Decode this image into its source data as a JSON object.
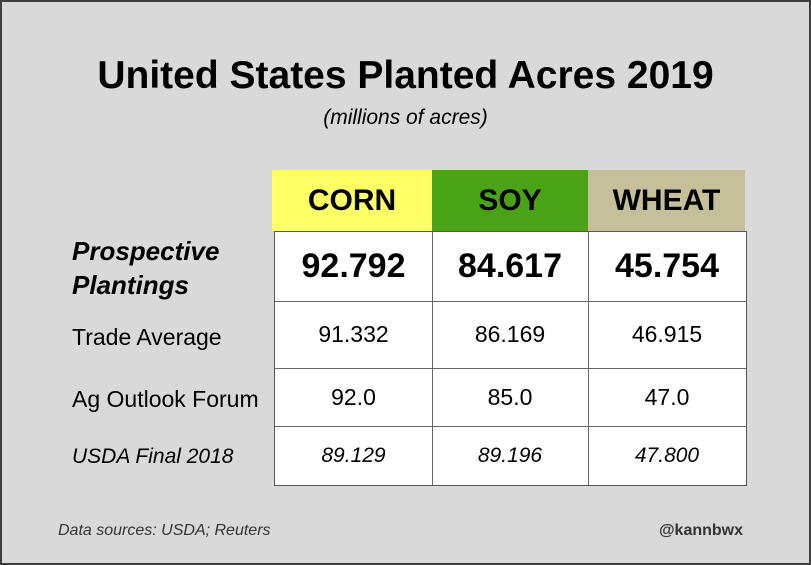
{
  "colors": {
    "background": "#d9d9d9",
    "corn_header": "#ffff66",
    "soy_header": "#4aa317",
    "wheat_header": "#c6c09a"
  },
  "title": "United States Planted Acres 2019",
  "subtitle": "(millions of acres)",
  "columns": [
    "CORN",
    "SOY",
    "WHEAT"
  ],
  "rows": [
    {
      "label_line1": "Prospective",
      "label_line2": "Plantings",
      "values": [
        "92.792",
        "84.617",
        "45.754"
      ]
    },
    {
      "label": "Trade Average",
      "values": [
        "91.332",
        "86.169",
        "46.915"
      ]
    },
    {
      "label": "Ag Outlook Forum",
      "values": [
        "92.0",
        "85.0",
        "47.0"
      ]
    },
    {
      "label": "USDA Final 2018",
      "values": [
        "89.129",
        "89.196",
        "47.800"
      ]
    }
  ],
  "footer": {
    "sources": "Data sources: USDA; Reuters",
    "handle": "@kannbwx"
  },
  "chart_data": {
    "type": "table",
    "title": "United States Planted Acres 2019",
    "subtitle": "(millions of acres)",
    "columns": [
      "CORN",
      "SOY",
      "WHEAT"
    ],
    "rows": [
      {
        "label": "Prospective Plantings",
        "values": [
          92.792,
          84.617,
          45.754
        ]
      },
      {
        "label": "Trade Average",
        "values": [
          91.332,
          86.169,
          46.915
        ]
      },
      {
        "label": "Ag Outlook Forum",
        "values": [
          92.0,
          85.0,
          47.0
        ]
      },
      {
        "label": "USDA Final 2018",
        "values": [
          89.129,
          89.196,
          47.8
        ]
      }
    ]
  }
}
